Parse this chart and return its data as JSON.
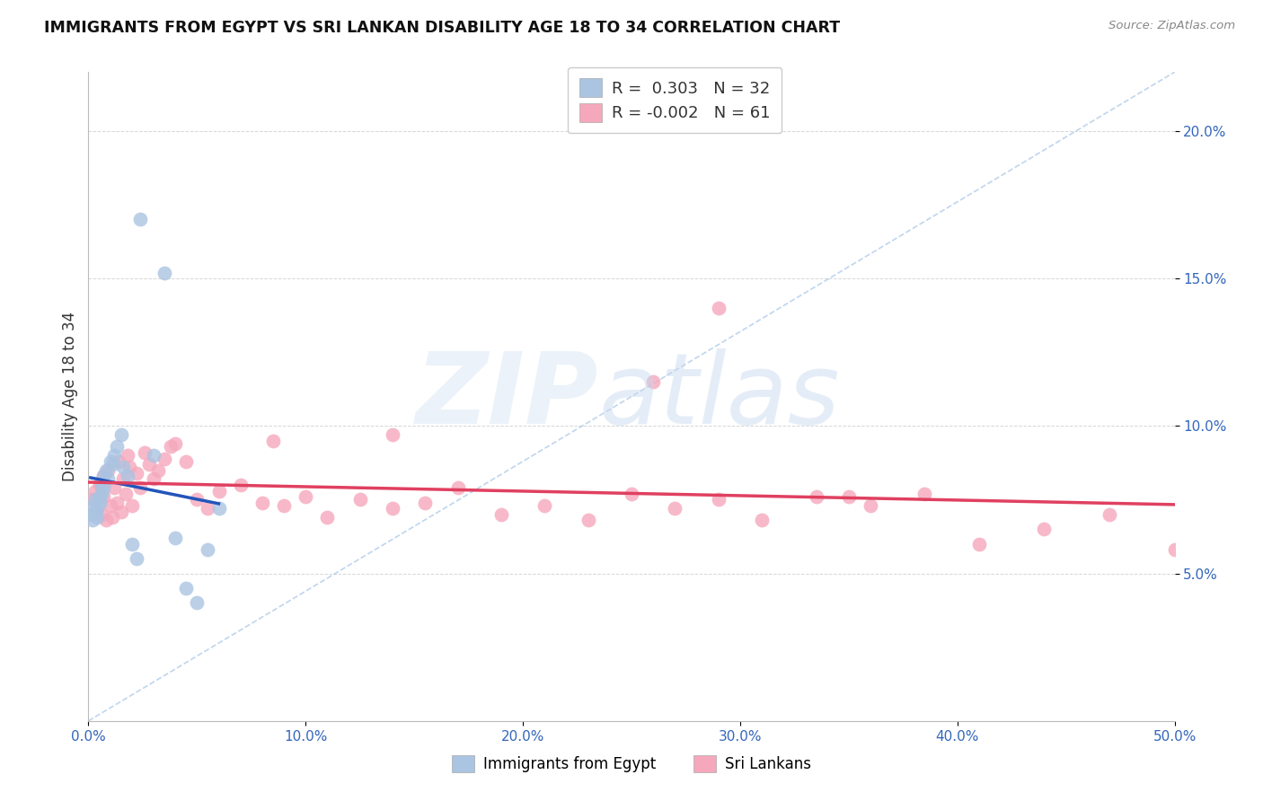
{
  "title": "IMMIGRANTS FROM EGYPT VS SRI LANKAN DISABILITY AGE 18 TO 34 CORRELATION CHART",
  "source": "Source: ZipAtlas.com",
  "ylabel": "Disability Age 18 to 34",
  "xlim": [
    0.0,
    0.5
  ],
  "ylim": [
    0.0,
    0.22
  ],
  "egypt_R": 0.303,
  "egypt_N": 32,
  "srilanka_R": -0.002,
  "srilanka_N": 61,
  "egypt_color": "#aac4e2",
  "srilanka_color": "#f5a8bc",
  "egypt_line_color": "#2255bb",
  "srilanka_line_color": "#e04060",
  "diag_line_color": "#aac8e8",
  "egypt_x": [
    0.001,
    0.002,
    0.002,
    0.003,
    0.003,
    0.004,
    0.004,
    0.005,
    0.005,
    0.006,
    0.006,
    0.007,
    0.007,
    0.008,
    0.009,
    0.01,
    0.011,
    0.012,
    0.013,
    0.015,
    0.016,
    0.018,
    0.02,
    0.022,
    0.024,
    0.03,
    0.035,
    0.04,
    0.045,
    0.05,
    0.055,
    0.06
  ],
  "egypt_y": [
    0.07,
    0.068,
    0.073,
    0.071,
    0.075,
    0.072,
    0.069,
    0.076,
    0.074,
    0.08,
    0.077,
    0.083,
    0.079,
    0.085,
    0.082,
    0.088,
    0.087,
    0.09,
    0.093,
    0.097,
    0.086,
    0.083,
    0.06,
    0.055,
    0.17,
    0.09,
    0.152,
    0.062,
    0.045,
    0.04,
    0.058,
    0.072
  ],
  "srilanka_x": [
    0.002,
    0.003,
    0.004,
    0.005,
    0.006,
    0.007,
    0.007,
    0.008,
    0.009,
    0.01,
    0.011,
    0.012,
    0.013,
    0.014,
    0.015,
    0.016,
    0.017,
    0.018,
    0.019,
    0.02,
    0.022,
    0.024,
    0.026,
    0.028,
    0.03,
    0.032,
    0.035,
    0.038,
    0.04,
    0.045,
    0.05,
    0.055,
    0.06,
    0.07,
    0.08,
    0.09,
    0.1,
    0.11,
    0.125,
    0.14,
    0.155,
    0.17,
    0.19,
    0.21,
    0.23,
    0.25,
    0.27,
    0.29,
    0.31,
    0.335,
    0.36,
    0.385,
    0.41,
    0.44,
    0.47,
    0.5,
    0.35,
    0.29,
    0.14,
    0.085,
    0.26
  ],
  "srilanka_y": [
    0.075,
    0.078,
    0.072,
    0.08,
    0.07,
    0.083,
    0.076,
    0.068,
    0.085,
    0.073,
    0.069,
    0.079,
    0.074,
    0.088,
    0.071,
    0.082,
    0.077,
    0.09,
    0.086,
    0.073,
    0.084,
    0.079,
    0.091,
    0.087,
    0.082,
    0.085,
    0.089,
    0.093,
    0.094,
    0.088,
    0.075,
    0.072,
    0.078,
    0.08,
    0.074,
    0.073,
    0.076,
    0.069,
    0.075,
    0.072,
    0.074,
    0.079,
    0.07,
    0.073,
    0.068,
    0.077,
    0.072,
    0.075,
    0.068,
    0.076,
    0.073,
    0.077,
    0.06,
    0.065,
    0.07,
    0.058,
    0.076,
    0.14,
    0.097,
    0.095,
    0.115
  ]
}
